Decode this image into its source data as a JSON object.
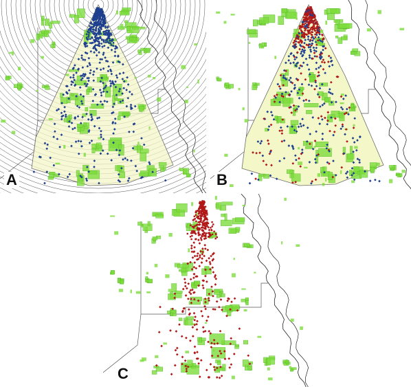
{
  "figure": {
    "panels": [
      {
        "id": "A",
        "label": "A",
        "show_rings": true,
        "show_wedge": true,
        "red_fraction": 0.0
      },
      {
        "id": "B",
        "label": "B",
        "show_rings": false,
        "show_wedge": true,
        "red_fraction": 0.35
      },
      {
        "id": "C",
        "label": "C",
        "show_rings": false,
        "show_wedge": false,
        "red_fraction": 1.0
      }
    ]
  },
  "colors": {
    "background": "#ffffff",
    "habitat_green": "#7ddc3c",
    "habitat_outline": "#58b828",
    "wedge_fill": "#f4f7c8",
    "wedge_stroke": "#6b6b6b",
    "ring_stroke": "#3a3a3a",
    "point_blue": "#1f3f8f",
    "point_red": "#b01818",
    "coastline": "#222222",
    "boundary": "#555555"
  }
}
